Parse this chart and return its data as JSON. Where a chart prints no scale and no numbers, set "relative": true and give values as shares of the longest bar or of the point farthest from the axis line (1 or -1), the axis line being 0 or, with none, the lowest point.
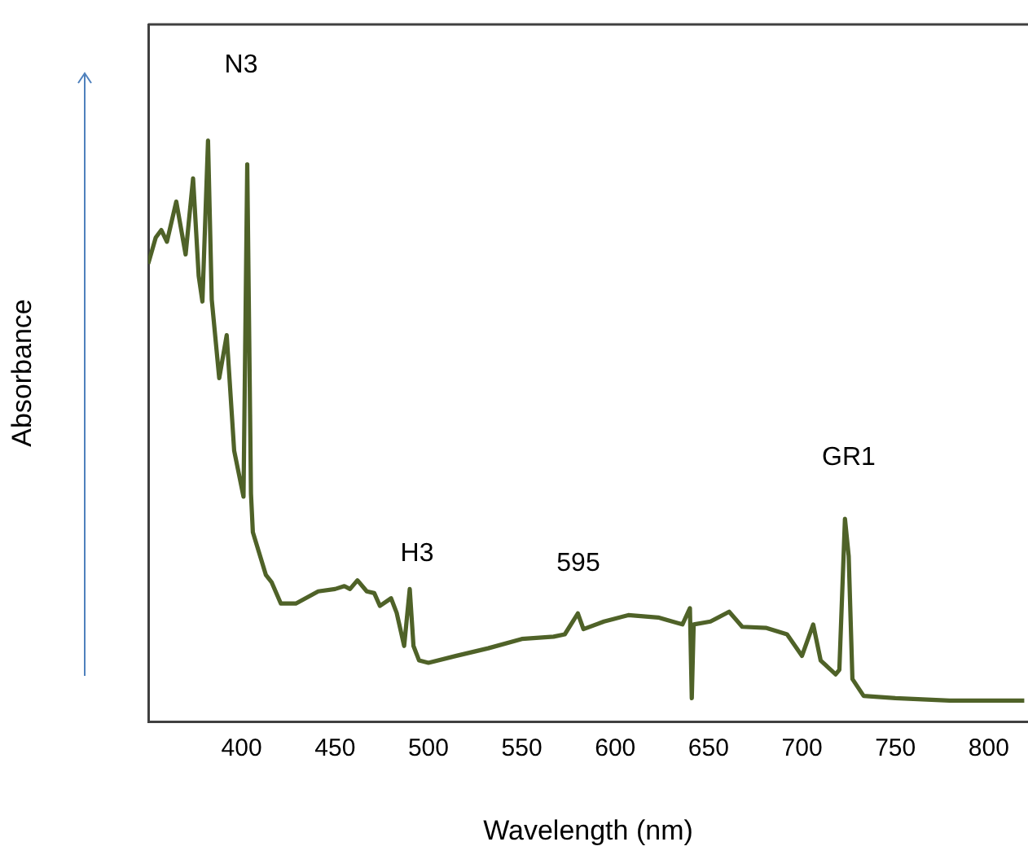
{
  "chart_data": {
    "type": "line",
    "relative": true,
    "xlabel": "Wavelength (nm)",
    "ylabel": "Absorbance",
    "xlim": [
      350,
      821
    ],
    "xticks": [
      400,
      450,
      500,
      550,
      600,
      650,
      700,
      750,
      800
    ],
    "grid": false,
    "legend": false,
    "marker": "none",
    "line_style": "solid",
    "series": [
      {
        "color": "#4f6228",
        "x": [
          350,
          354,
          357,
          360,
          365,
          370,
          374,
          377,
          379,
          382,
          384,
          388,
          392,
          396,
          401,
          403,
          405,
          406,
          413,
          416,
          421,
          429,
          441,
          450,
          455,
          458,
          462,
          467,
          471,
          474,
          480,
          483,
          487,
          490,
          492,
          495,
          500,
          515,
          532,
          550,
          567,
          573,
          580,
          583,
          594,
          607,
          623,
          636,
          640,
          641,
          642,
          651,
          661,
          668,
          681,
          692,
          700,
          706,
          710,
          718,
          720,
          723,
          725,
          727,
          733,
          750,
          779,
          819
        ],
        "values": [
          0.788,
          0.833,
          0.846,
          0.826,
          0.895,
          0.804,
          0.935,
          0.767,
          0.723,
          1.0,
          0.726,
          0.591,
          0.665,
          0.466,
          0.387,
          0.959,
          0.392,
          0.326,
          0.252,
          0.24,
          0.203,
          0.203,
          0.224,
          0.228,
          0.233,
          0.228,
          0.243,
          0.224,
          0.221,
          0.199,
          0.212,
          0.187,
          0.13,
          0.228,
          0.13,
          0.105,
          0.101,
          0.113,
          0.126,
          0.142,
          0.146,
          0.15,
          0.186,
          0.159,
          0.172,
          0.183,
          0.179,
          0.167,
          0.195,
          0.04,
          0.167,
          0.172,
          0.189,
          0.163,
          0.161,
          0.15,
          0.113,
          0.167,
          0.105,
          0.081,
          0.089,
          0.349,
          0.285,
          0.073,
          0.044,
          0.04,
          0.036,
          0.036
        ]
      }
    ],
    "annotations": [
      "N3",
      "H3",
      "595",
      "GR1"
    ]
  }
}
